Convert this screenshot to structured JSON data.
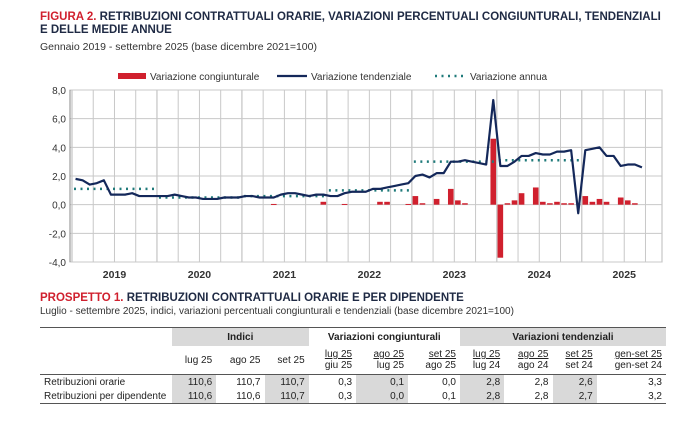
{
  "figure": {
    "label": "FIGURA 2.",
    "title": "RETRIBUZIONI CONTRATTUALI ORARIE, VARIAZIONI PERCENTUALI CONGIUNTURALI, TENDENZIALI E DELLE MEDIE ANNUE",
    "subtitle": "Gennaio 2019 - settembre 2025 (base dicembre 2021=100)"
  },
  "colors": {
    "congiunturale": "#d0202e",
    "tendenziale": "#14285a",
    "annua": "#1f7a7a",
    "title_label": "#d0202e"
  },
  "chart_data": {
    "type": "bar+line",
    "legend": [
      "Variazione congiunturale",
      "Variazione tendenziale",
      "Variazione annua"
    ],
    "legend_position": "top",
    "x_range": [
      "2019-01",
      "2025-09"
    ],
    "x_tick_labels": [
      "2019",
      "2020",
      "2021",
      "2022",
      "2023",
      "2024",
      "2025"
    ],
    "y_tick_labels": [
      "8,0",
      "6,0",
      "4,0",
      "2,0",
      "0,0",
      "-2,0",
      "-4,0"
    ],
    "ylim": [
      -4,
      8
    ],
    "grid": true,
    "series": [
      {
        "name": "Variazione congiunturale",
        "type": "bar",
        "values": [
          0,
          0,
          0,
          0,
          0,
          0,
          0,
          0,
          0,
          0,
          0,
          0,
          0,
          0,
          0,
          0,
          0,
          0,
          0,
          0,
          0,
          0,
          0,
          0,
          0,
          0,
          0,
          0,
          0.05,
          0,
          0,
          0,
          0,
          0,
          0,
          0.2,
          0,
          0,
          0.05,
          0,
          0,
          0,
          0,
          0.2,
          0.2,
          0,
          0,
          0.05,
          0.6,
          0.1,
          0,
          0.4,
          0,
          1.1,
          0.3,
          0.1,
          0,
          0,
          0,
          4.6,
          -3.7,
          0.1,
          0.3,
          0.8,
          0,
          1.2,
          0.2,
          0.1,
          0.2,
          0.1,
          0.1,
          0,
          0.6,
          0.2,
          0.4,
          0.2,
          0,
          0.5,
          0.3,
          0.1,
          0.0
        ]
      },
      {
        "name": "Variazione tendenziale",
        "type": "line",
        "values": [
          1.8,
          1.7,
          1.4,
          1.5,
          1.7,
          0.7,
          0.7,
          0.7,
          0.8,
          0.6,
          0.6,
          0.6,
          0.6,
          0.6,
          0.7,
          0.6,
          0.5,
          0.5,
          0.4,
          0.4,
          0.4,
          0.5,
          0.5,
          0.5,
          0.6,
          0.6,
          0.5,
          0.5,
          0.5,
          0.7,
          0.8,
          0.8,
          0.7,
          0.6,
          0.7,
          0.7,
          0.6,
          0.6,
          0.8,
          0.9,
          0.9,
          0.9,
          1.1,
          1.1,
          1.2,
          1.3,
          1.4,
          1.5,
          2.0,
          2.1,
          1.9,
          2.2,
          2.2,
          3.0,
          3.0,
          3.1,
          3.0,
          2.9,
          2.8,
          7.3,
          2.7,
          2.7,
          3.0,
          3.4,
          3.4,
          3.6,
          3.5,
          3.5,
          3.7,
          3.7,
          3.8,
          -0.6,
          3.8,
          3.9,
          4.0,
          3.4,
          3.4,
          2.7,
          2.8,
          2.8,
          2.6
        ]
      },
      {
        "name": "Variazione annua",
        "type": "step",
        "years": [
          "2019",
          "2020",
          "2021",
          "2022",
          "2023",
          "2024"
        ],
        "values": [
          1.1,
          0.5,
          0.6,
          1.0,
          3.0,
          3.1
        ]
      }
    ]
  },
  "prospetto": {
    "label": "PROSPETTO 1.",
    "title": "RETRIBUZIONI CONTRATTUALI ORARIE E PER DIPENDENTE",
    "subtitle": "Luglio - settembre 2025, indici, variazioni percentuali congiunturali e tendenziali (base dicembre 2021=100)",
    "groups": [
      "Indici",
      "Variazioni congiunturali",
      "Variazioni tendenziali"
    ],
    "columns": [
      [
        "lug 25",
        ""
      ],
      [
        "ago 25",
        ""
      ],
      [
        "set 25",
        ""
      ],
      [
        "lug 25",
        "giu 25"
      ],
      [
        "ago 25",
        "lug 25"
      ],
      [
        "set 25",
        "ago 25"
      ],
      [
        "lug 25",
        "lug 24"
      ],
      [
        "ago 25",
        "ago 24"
      ],
      [
        "set 25",
        "set 24"
      ],
      [
        "gen-set 25",
        "gen-set 24"
      ]
    ],
    "rows": [
      {
        "label": "Retribuzioni orarie",
        "values": [
          "110,6",
          "110,7",
          "110,7",
          "0,3",
          "0,1",
          "0,0",
          "2,8",
          "2,8",
          "2,6",
          "3,3"
        ]
      },
      {
        "label": "Retribuzioni per dipendente",
        "values": [
          "110,6",
          "110,6",
          "110,7",
          "0,3",
          "0,0",
          "0,1",
          "2,8",
          "2,8",
          "2,7",
          "3,2"
        ]
      }
    ]
  }
}
